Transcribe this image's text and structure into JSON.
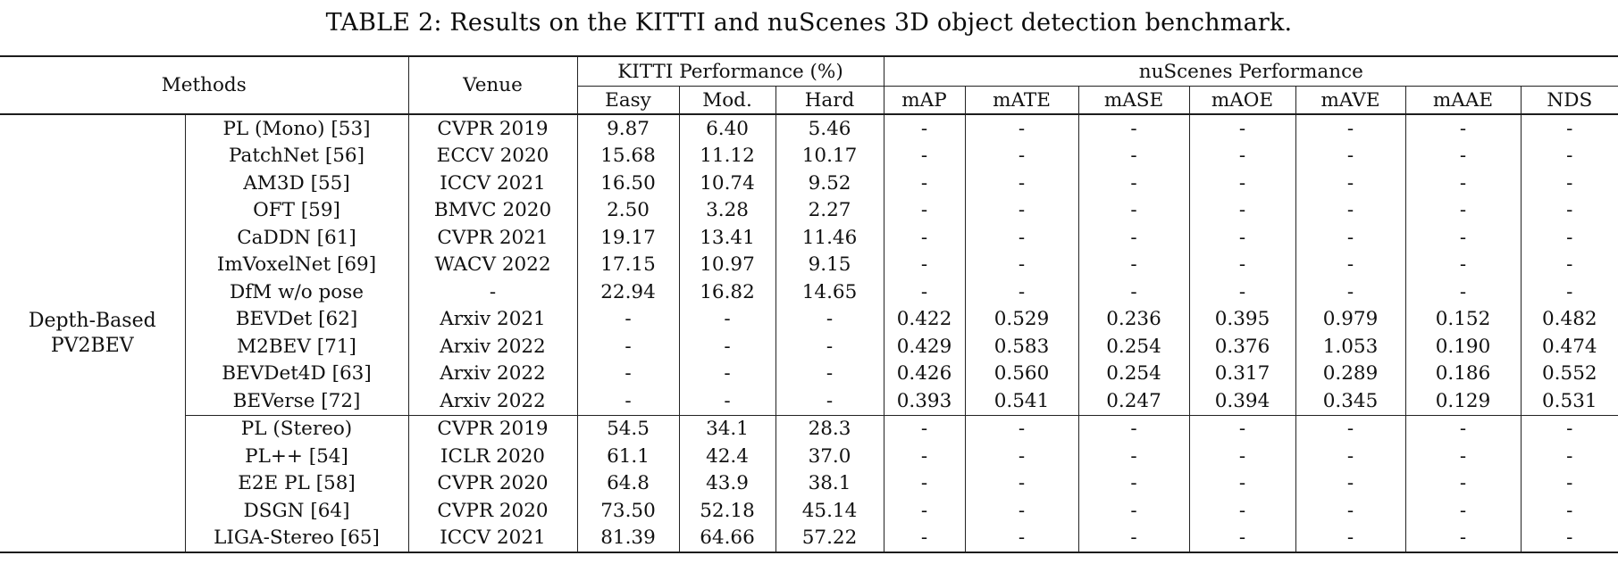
{
  "caption": "TABLE 2: Results on the KITTI and nuScenes 3D object detection benchmark.",
  "colors": {
    "background": "#ffffff",
    "text": "#111111",
    "rule": "#1c1c1c"
  },
  "table": {
    "header": {
      "methods": "Methods",
      "venue": "Venue",
      "kitti_group": "KITTI Performance (%)",
      "nuscenes_group": "nuScenes Performance",
      "sub_columns": [
        "Easy",
        "Mod.",
        "Hard",
        "mAP",
        "mATE",
        "mASE",
        "mAOE",
        "mAVE",
        "mAAE",
        "NDS"
      ]
    },
    "group_label": {
      "line1": "Depth-Based",
      "line2": "PV2BEV"
    },
    "rows": [
      {
        "method": "PL (Mono) [53]",
        "venue": "CVPR 2019",
        "values": [
          "9.87",
          "6.40",
          "5.46",
          "-",
          "-",
          "-",
          "-",
          "-",
          "-",
          "-"
        ]
      },
      {
        "method": "PatchNet [56]",
        "venue": "ECCV 2020",
        "values": [
          "15.68",
          "11.12",
          "10.17",
          "-",
          "-",
          "-",
          "-",
          "-",
          "-",
          "-"
        ]
      },
      {
        "method": "AM3D [55]",
        "venue": "ICCV 2021",
        "values": [
          "16.50",
          "10.74",
          "9.52",
          "-",
          "-",
          "-",
          "-",
          "-",
          "-",
          "-"
        ]
      },
      {
        "method": "OFT [59]",
        "venue": "BMVC 2020",
        "values": [
          "2.50",
          "3.28",
          "2.27",
          "-",
          "-",
          "-",
          "-",
          "-",
          "-",
          "-"
        ]
      },
      {
        "method": "CaDDN [61]",
        "venue": "CVPR 2021",
        "values": [
          "19.17",
          "13.41",
          "11.46",
          "-",
          "-",
          "-",
          "-",
          "-",
          "-",
          "-"
        ]
      },
      {
        "method": "ImVoxelNet [69]",
        "venue": "WACV 2022",
        "values": [
          "17.15",
          "10.97",
          "9.15",
          "-",
          "-",
          "-",
          "-",
          "-",
          "-",
          "-"
        ]
      },
      {
        "method": "DfM w/o pose",
        "venue": "-",
        "values": [
          "22.94",
          "16.82",
          "14.65",
          "-",
          "-",
          "-",
          "-",
          "-",
          "-",
          "-"
        ]
      },
      {
        "method": "BEVDet [62]",
        "venue": "Arxiv 2021",
        "values": [
          "-",
          "-",
          "-",
          "0.422",
          "0.529",
          "0.236",
          "0.395",
          "0.979",
          "0.152",
          "0.482"
        ]
      },
      {
        "method": "M2BEV [71]",
        "venue": "Arxiv 2022",
        "values": [
          "-",
          "-",
          "-",
          "0.429",
          "0.583",
          "0.254",
          "0.376",
          "1.053",
          "0.190",
          "0.474"
        ]
      },
      {
        "method": "BEVDet4D [63]",
        "venue": "Arxiv 2022",
        "values": [
          "-",
          "-",
          "-",
          "0.426",
          "0.560",
          "0.254",
          "0.317",
          "0.289",
          "0.186",
          "0.552"
        ]
      },
      {
        "method": "BEVerse [72]",
        "venue": "Arxiv 2022",
        "values": [
          "-",
          "-",
          "-",
          "0.393",
          "0.541",
          "0.247",
          "0.394",
          "0.345",
          "0.129",
          "0.531"
        ]
      },
      {
        "method": "PL (Stereo)",
        "venue": "CVPR 2019",
        "values": [
          "54.5",
          "34.1",
          "28.3",
          "-",
          "-",
          "-",
          "-",
          "-",
          "-",
          "-"
        ]
      },
      {
        "method": "PL++ [54]",
        "venue": "ICLR 2020",
        "values": [
          "61.1",
          "42.4",
          "37.0",
          "-",
          "-",
          "-",
          "-",
          "-",
          "-",
          "-"
        ]
      },
      {
        "method": "E2E PL [58]",
        "venue": "CVPR 2020",
        "values": [
          "64.8",
          "43.9",
          "38.1",
          "-",
          "-",
          "-",
          "-",
          "-",
          "-",
          "-"
        ]
      },
      {
        "method": "DSGN [64]",
        "venue": "CVPR 2020",
        "values": [
          "73.50",
          "52.18",
          "45.14",
          "-",
          "-",
          "-",
          "-",
          "-",
          "-",
          "-"
        ]
      },
      {
        "method": "LIGA-Stereo [65]",
        "venue": "ICCV 2021",
        "values": [
          "81.39",
          "64.66",
          "57.22",
          "-",
          "-",
          "-",
          "-",
          "-",
          "-",
          "-"
        ]
      }
    ],
    "stereo_group_start_index": 11
  }
}
